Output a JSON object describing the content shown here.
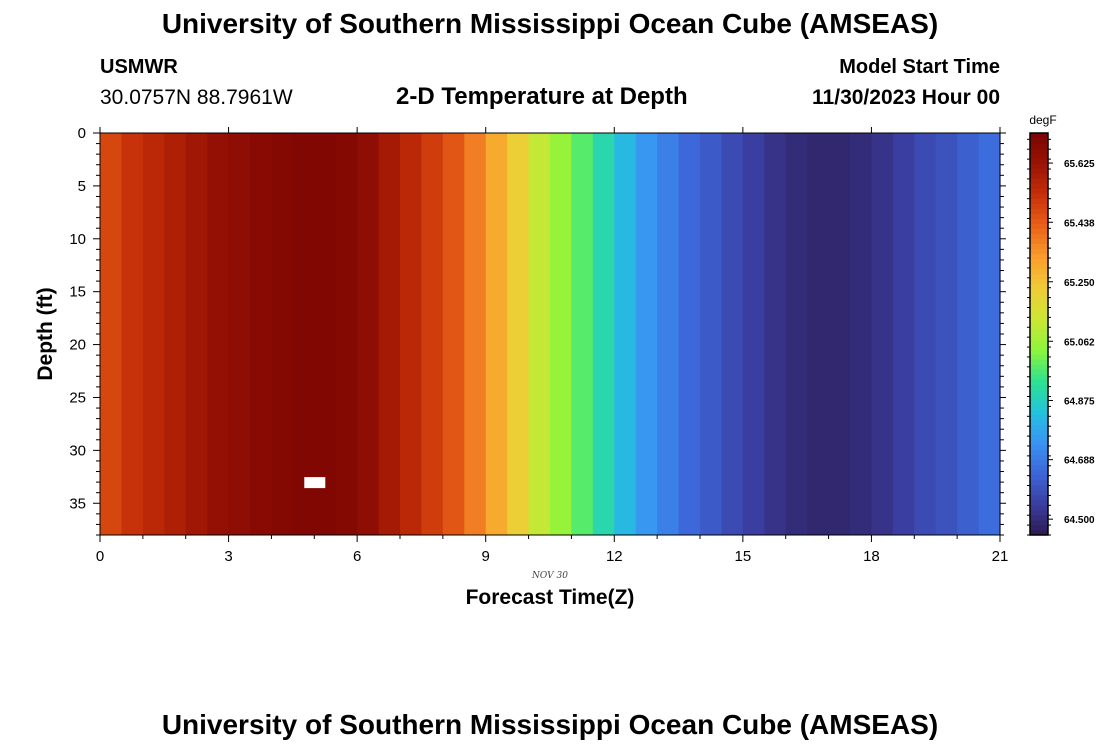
{
  "header": {
    "title": "University of Southern Mississippi Ocean Cube (AMSEAS)",
    "station": "USMWR",
    "coordinates": "30.0757N  88.7961W",
    "subtitle": "2-D Temperature at Depth",
    "model_start_label": "Model Start Time",
    "model_start_value": "11/30/2023 Hour 00"
  },
  "footer": {
    "title": "University of Southern Mississippi Ocean Cube (AMSEAS)"
  },
  "chart_data": {
    "type": "heatmap",
    "title": "2-D Temperature at Depth",
    "xlabel": "Forecast Time(Z)",
    "ylabel": "Depth (ft)",
    "date_label": "NOV  30",
    "xlim": [
      0,
      21
    ],
    "ylim": [
      0,
      38
    ],
    "y_inverted": true,
    "xticks": [
      0,
      3,
      6,
      9,
      12,
      15,
      18,
      21
    ],
    "yticks": [
      0,
      5,
      10,
      15,
      20,
      25,
      30,
      35
    ],
    "colorbar": {
      "unit": "degF",
      "ticks": [
        "65.625",
        "65.438",
        "65.250",
        "65.062",
        "64.875",
        "64.688",
        "64.500"
      ],
      "tick_values": [
        65.625,
        65.438,
        65.25,
        65.062,
        64.875,
        64.688,
        64.5
      ],
      "vmin": 64.45,
      "vmax": 65.72,
      "palette": [
        "#2b1a4f",
        "#3b3da0",
        "#3d66d8",
        "#3a94f3",
        "#22c3dc",
        "#2de38f",
        "#8ef53a",
        "#cde635",
        "#f0cb36",
        "#f99d2c",
        "#ea6218",
        "#c63009",
        "#9b1304",
        "#7a0403"
      ],
      "position": "right"
    },
    "grid": false,
    "x": [
      0.25,
      0.75,
      1.25,
      1.75,
      2.25,
      2.75,
      3.25,
      3.75,
      4.25,
      4.75,
      5.25,
      5.75,
      6.25,
      6.75,
      7.25,
      7.75,
      8.25,
      8.75,
      9.25,
      9.75,
      10.25,
      10.75,
      11.25,
      11.75,
      12.25,
      12.75,
      13.25,
      13.75,
      14.25,
      14.75,
      15.25,
      15.75,
      16.25,
      16.75,
      17.25,
      17.75,
      18.25,
      18.75,
      19.25,
      19.75,
      20.25,
      20.75
    ],
    "values": [
      65.48,
      65.52,
      65.55,
      65.58,
      65.61,
      65.64,
      65.66,
      65.68,
      65.69,
      65.7,
      65.7,
      65.69,
      65.66,
      65.6,
      65.55,
      65.5,
      65.45,
      65.38,
      65.3,
      65.22,
      65.12,
      65.05,
      64.98,
      64.9,
      64.82,
      64.75,
      64.7,
      64.65,
      64.62,
      64.58,
      64.55,
      64.52,
      64.5,
      64.49,
      64.49,
      64.5,
      64.52,
      64.55,
      64.58,
      64.6,
      64.63,
      64.66
    ],
    "missing_marker": {
      "x": 5.0,
      "depth": 33.0
    }
  }
}
